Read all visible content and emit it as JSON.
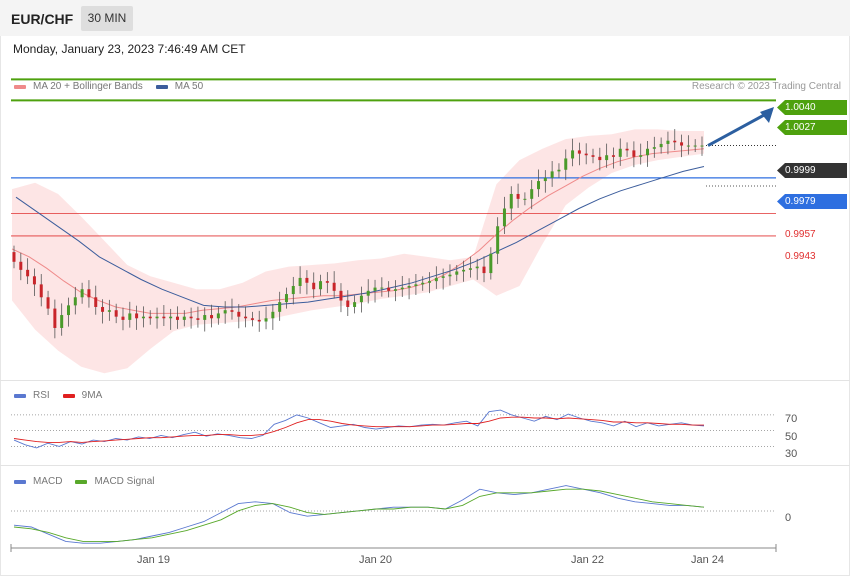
{
  "header": {
    "symbol": "EUR/CHF",
    "timeframe": "30 MIN",
    "timestamp": "Monday, January 23, 2023 7:46:49 AM CET"
  },
  "legend": {
    "ma20_label": "MA 20 + Bollinger Bands",
    "ma50_label": "MA 50",
    "credit": "Research © 2023 Trading Central",
    "rsi_label": "RSI",
    "rsi_ma_label": "9MA",
    "macd_label": "MACD",
    "macd_signal_label": "MACD Signal"
  },
  "colors": {
    "up_candle": "#4a9a2a",
    "down_candle": "#c8252a",
    "ma20": "#ef8a8a",
    "bb_fill": "#fde2e2",
    "ma50": "#3c5d9c",
    "resistance": "#4ea10e",
    "support_blue": "#2e6fe0",
    "support_red": "#e03030",
    "current": "#333333",
    "arrow": "#2c5fa0",
    "rsi": "#5a78d0",
    "rsi_ma": "#e02020",
    "macd": "#5a78d0",
    "macd_signal": "#58a82a"
  },
  "chart_data": [
    {
      "type": "candlestick",
      "title": "EUR/CHF",
      "timeframe": "30 MIN",
      "ylim": [
        0.9855,
        1.0052
      ],
      "x_ticks": [
        "Jan 19",
        "Jan 20",
        "Jan 22",
        "Jan 24"
      ],
      "levels": [
        {
          "value": "1.0040",
          "kind": "target",
          "color": "#4ea10e"
        },
        {
          "value": "1.0027",
          "kind": "target",
          "color": "#4ea10e"
        },
        {
          "value": "0.9999",
          "kind": "current",
          "color": "#333333"
        },
        {
          "value": "0.9979",
          "kind": "pivot",
          "color": "#2e6fe0"
        },
        {
          "value": "0.9957",
          "kind": "support",
          "color": "#e03030"
        },
        {
          "value": "0.9943",
          "kind": "support",
          "color": "#e03030"
        }
      ],
      "close_series": [
        0.9927,
        0.9922,
        0.9918,
        0.9913,
        0.9905,
        0.9898,
        0.9886,
        0.9894,
        0.99,
        0.9905,
        0.991,
        0.9905,
        0.9899,
        0.9896,
        0.9897,
        0.9893,
        0.9891,
        0.9895,
        0.9892,
        0.9893,
        0.9892,
        0.9893,
        0.9892,
        0.9893,
        0.9891,
        0.9893,
        0.9892,
        0.9891,
        0.9894,
        0.9892,
        0.9895,
        0.9897,
        0.9896,
        0.9893,
        0.9892,
        0.9891,
        0.989,
        0.9892,
        0.9896,
        0.9902,
        0.9907,
        0.9912,
        0.9917,
        0.9914,
        0.991,
        0.9915,
        0.9914,
        0.9909,
        0.9903,
        0.9899,
        0.9902,
        0.9906,
        0.9909,
        0.9911,
        0.9911,
        0.9909,
        0.991,
        0.9911,
        0.9912,
        0.9913,
        0.9914,
        0.9915,
        0.9917,
        0.9918,
        0.9919,
        0.9921,
        0.9922,
        0.9923,
        0.9924,
        0.992,
        0.9932,
        0.9949,
        0.996,
        0.9969,
        0.9966,
        0.9966,
        0.9972,
        0.9977,
        0.9979,
        0.9983,
        0.9984,
        0.9991,
        0.9996,
        0.9994,
        0.9993,
        0.9992,
        0.999,
        0.9993,
        0.9992,
        0.9997,
        0.9996,
        0.9992,
        0.9993,
        0.9997,
        0.9998,
        1.0,
        1.0002,
        1.0001,
        0.9999,
        0.9999,
        0.9999,
        0.9999
      ],
      "ma20": [
        0.9935,
        0.993,
        0.9923,
        0.9915,
        0.9908,
        0.9903,
        0.9899,
        0.9897,
        0.9895,
        0.9895,
        0.9895,
        0.9897,
        0.9898,
        0.9899,
        0.9901,
        0.9903,
        0.9904,
        0.9905,
        0.9906,
        0.9906,
        0.9907,
        0.9908,
        0.9909,
        0.9911,
        0.9914,
        0.9919,
        0.9926,
        0.9934,
        0.9944,
        0.9953,
        0.9961,
        0.9968,
        0.9974,
        0.998,
        0.9985,
        0.9989,
        0.9992,
        0.9994,
        0.9995,
        0.9996,
        0.9997
      ],
      "ma50": [
        0.9967,
        0.9958,
        0.9949,
        0.994,
        0.993,
        0.9923,
        0.9916,
        0.991,
        0.9905,
        0.99,
        0.9899,
        0.9899,
        0.99,
        0.9901,
        0.9902,
        0.9904,
        0.9906,
        0.9908,
        0.9911,
        0.9914,
        0.9918,
        0.9922,
        0.9927,
        0.9933,
        0.9939,
        0.9946,
        0.9953,
        0.996,
        0.9966,
        0.9971,
        0.9975,
        0.9979,
        0.9983,
        0.9986
      ],
      "bb_upper": [
        0.9972,
        0.9976,
        0.9969,
        0.9955,
        0.994,
        0.9925,
        0.9918,
        0.9914,
        0.991,
        0.991,
        0.9914,
        0.9921,
        0.9924,
        0.9925,
        0.9926,
        0.9928,
        0.9929,
        0.9932,
        0.993,
        0.9928,
        0.993,
        0.9975,
        0.999,
        0.9997,
        1.0003,
        1.0005,
        1.0006,
        1.0009,
        1.0009,
        1.0008,
        1.0008
      ],
      "bb_lower": [
        0.9903,
        0.9885,
        0.9872,
        0.9862,
        0.9858,
        0.9861,
        0.9873,
        0.9884,
        0.9888,
        0.9889,
        0.989,
        0.9891,
        0.9894,
        0.9897,
        0.9899,
        0.9901,
        0.9904,
        0.9906,
        0.9908,
        0.9912,
        0.9916,
        0.9906,
        0.9912,
        0.9938,
        0.9962,
        0.9973,
        0.9982,
        0.9987,
        0.999,
        0.9992,
        0.9994
      ]
    },
    {
      "type": "line",
      "title": "RSI",
      "yticks": [
        "70",
        "50",
        "30"
      ],
      "series": [
        {
          "name": "RSI",
          "values": [
            38,
            32,
            28,
            34,
            30,
            36,
            33,
            38,
            36,
            40,
            38,
            42,
            40,
            44,
            41,
            45,
            48,
            43,
            46,
            44,
            41,
            40,
            44,
            58,
            63,
            70,
            66,
            60,
            54,
            56,
            58,
            54,
            52,
            54,
            56,
            55,
            57,
            58,
            57,
            60,
            62,
            56,
            74,
            76,
            70,
            66,
            62,
            68,
            64,
            71,
            66,
            62,
            60,
            56,
            62,
            55,
            60,
            56,
            58,
            60,
            57,
            56
          ]
        },
        {
          "name": "9MA",
          "values": [
            40,
            38,
            36,
            35,
            35,
            36,
            35,
            36,
            37,
            38,
            39,
            40,
            41,
            41,
            42,
            43,
            44,
            44,
            45,
            45,
            44,
            44,
            45,
            49,
            54,
            60,
            64,
            64,
            62,
            59,
            57,
            56,
            55,
            55,
            55,
            55,
            56,
            57,
            57,
            58,
            59,
            59,
            62,
            66,
            67,
            67,
            66,
            66,
            65,
            66,
            65,
            64,
            63,
            61,
            61,
            60,
            60,
            59,
            58,
            58,
            57,
            57
          ]
        }
      ]
    },
    {
      "type": "line",
      "title": "MACD",
      "yticks": [
        "0"
      ],
      "series": [
        {
          "name": "MACD",
          "values": [
            -0.4,
            -0.5,
            -0.9,
            -1.3,
            -1.4,
            -1.4,
            -1.3,
            -1.2,
            -1.0,
            -0.8,
            -0.5,
            -0.2,
            0.3,
            0.8,
            0.9,
            0.8,
            0.3,
            0.1,
            0.2,
            0.3,
            0.4,
            0.5,
            0.6,
            0.6,
            0.6,
            0.5,
            1.0,
            1.6,
            1.4,
            1.3,
            1.4,
            1.6,
            1.8,
            1.6,
            1.4,
            1.1,
            0.9,
            0.8,
            0.7,
            0.7,
            0.6
          ]
        },
        {
          "name": "MACD Signal",
          "values": [
            -0.5,
            -0.6,
            -0.8,
            -1.1,
            -1.3,
            -1.3,
            -1.3,
            -1.2,
            -1.1,
            -0.9,
            -0.7,
            -0.4,
            -0.1,
            0.4,
            0.7,
            0.8,
            0.6,
            0.3,
            0.2,
            0.3,
            0.4,
            0.5,
            0.5,
            0.6,
            0.6,
            0.5,
            0.7,
            1.2,
            1.4,
            1.4,
            1.4,
            1.5,
            1.6,
            1.6,
            1.5,
            1.3,
            1.1,
            0.9,
            0.8,
            0.7,
            0.6
          ]
        }
      ]
    }
  ]
}
